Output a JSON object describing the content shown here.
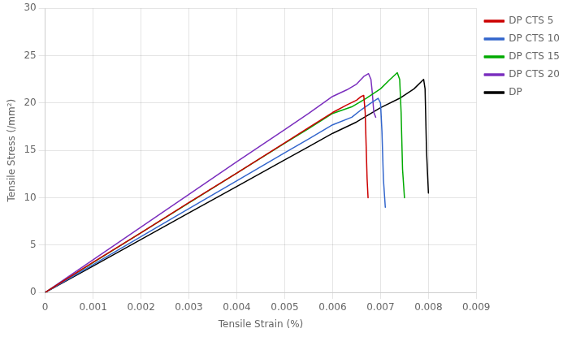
{
  "chart_data": {
    "type": "line",
    "xlabel": "Tensile Strain (%)",
    "ylabel": "Tensile Stress (/mm²)",
    "xlim": [
      0,
      0.009
    ],
    "ylim": [
      0,
      30
    ],
    "xticks": [
      0,
      0.001,
      0.002,
      0.003,
      0.004,
      0.005,
      0.006,
      0.007,
      0.008,
      0.009
    ],
    "yticks": [
      0,
      5,
      10,
      15,
      20,
      25,
      30
    ],
    "grid": true,
    "legend": "right",
    "series": [
      {
        "name": "DP CTS 5",
        "color": "#cc0000",
        "x": [
          0,
          0.001,
          0.002,
          0.003,
          0.004,
          0.005,
          0.0055,
          0.006,
          0.0063,
          0.0065,
          0.0066,
          0.00665,
          0.00668,
          0.0067,
          0.00672,
          0.00674
        ],
        "values": [
          0,
          3.2,
          6.3,
          9.5,
          12.6,
          15.8,
          17.4,
          19.0,
          19.8,
          20.3,
          20.7,
          20.8,
          19.0,
          15.5,
          12.0,
          10.0
        ]
      },
      {
        "name": "DP CTS 10",
        "color": "#3366cc",
        "x": [
          0,
          0.001,
          0.002,
          0.003,
          0.004,
          0.005,
          0.0055,
          0.006,
          0.0064,
          0.0066,
          0.0068,
          0.00695,
          0.007,
          0.00703,
          0.00706,
          0.0071
        ],
        "values": [
          0,
          2.95,
          5.9,
          8.85,
          11.8,
          14.75,
          16.2,
          17.7,
          18.5,
          19.3,
          20.0,
          20.5,
          20.0,
          17.0,
          12.0,
          9.0
        ]
      },
      {
        "name": "DP CTS 15",
        "color": "#00aa00",
        "x": [
          0,
          0.001,
          0.002,
          0.003,
          0.004,
          0.005,
          0.0055,
          0.006,
          0.0064,
          0.0067,
          0.007,
          0.0072,
          0.00735,
          0.0074,
          0.00743,
          0.00746,
          0.0075
        ],
        "values": [
          0,
          3.15,
          6.3,
          9.45,
          12.6,
          15.75,
          17.3,
          18.9,
          19.6,
          20.5,
          21.5,
          22.5,
          23.2,
          22.5,
          19.0,
          13.0,
          10.0
        ]
      },
      {
        "name": "DP CTS 20",
        "color": "#7b2fbe",
        "x": [
          0,
          0.001,
          0.002,
          0.003,
          0.004,
          0.005,
          0.0055,
          0.006,
          0.0063,
          0.0065,
          0.00665,
          0.00675,
          0.0068,
          0.00683,
          0.00686,
          0.0069
        ],
        "values": [
          0,
          3.45,
          6.9,
          10.35,
          13.8,
          17.2,
          18.9,
          20.7,
          21.4,
          22.0,
          22.8,
          23.1,
          22.5,
          21.0,
          19.0,
          18.5
        ]
      },
      {
        "name": "DP",
        "color": "#000000",
        "x": [
          0,
          0.001,
          0.002,
          0.003,
          0.004,
          0.005,
          0.0055,
          0.006,
          0.0065,
          0.007,
          0.0074,
          0.0077,
          0.0079,
          0.00793,
          0.00796,
          0.008
        ],
        "values": [
          0,
          2.8,
          5.6,
          8.4,
          11.2,
          14.0,
          15.4,
          16.8,
          18.0,
          19.5,
          20.5,
          21.5,
          22.5,
          21.5,
          15.0,
          10.5
        ]
      }
    ]
  }
}
